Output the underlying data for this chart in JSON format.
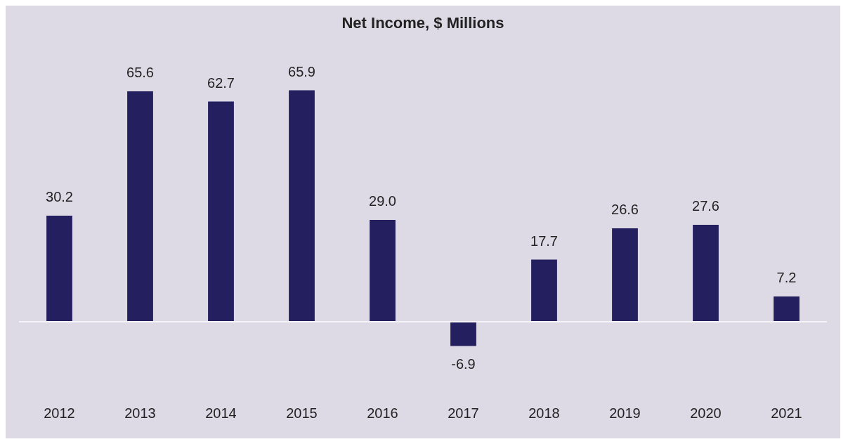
{
  "chart_data": {
    "type": "bar",
    "title": "Net Income, $ Millions",
    "categories": [
      "2012",
      "2013",
      "2014",
      "2015",
      "2016",
      "2017",
      "2018",
      "2019",
      "2020",
      "2021"
    ],
    "values": [
      30.2,
      65.6,
      62.7,
      65.9,
      29.0,
      -6.9,
      17.7,
      26.6,
      27.6,
      7.2
    ],
    "value_labels": [
      "30.2",
      "65.6",
      "62.7",
      "65.9",
      "29.0",
      "-6.9",
      "17.7",
      "26.6",
      "27.6",
      "7.2"
    ],
    "color": "#241f5e"
  }
}
